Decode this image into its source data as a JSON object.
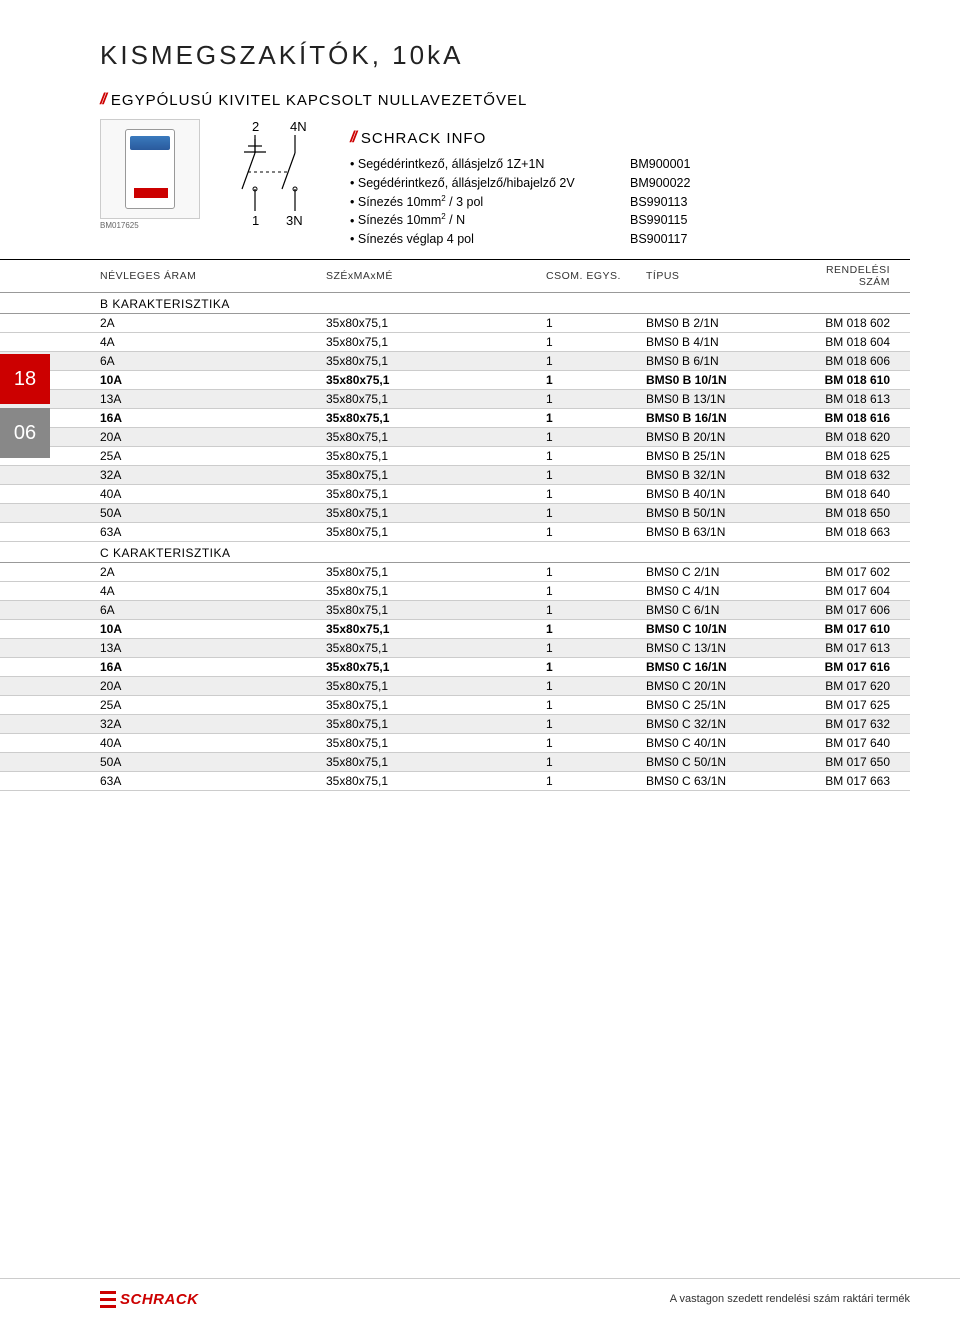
{
  "page_title": "KISMEGSZAKÍTÓK, 10kA",
  "main_section_title": "EGYPÓLUSÚ KIVITEL KAPCSOLT NULLAVEZETŐVEL",
  "info_title": "SCHRACK INFO",
  "photo_caption": "BM017625",
  "circuit_labels": {
    "tl": "2",
    "tr": "4N",
    "bl": "1",
    "br": "3N"
  },
  "info_items": [
    {
      "label": "Segédérintkező, állásjelző 1Z+1N",
      "code": "BM900001"
    },
    {
      "label": "Segédérintkező, állásjelző/hibajelző 2V",
      "code": "BM900022"
    },
    {
      "label": "Sínezés 10mm² / 3 pol",
      "code": "BS990113"
    },
    {
      "label": "Sínezés 10mm² / N",
      "code": "BS990115"
    },
    {
      "label": "Sínezés véglap 4 pol",
      "code": "BS900117"
    }
  ],
  "table_headers": {
    "name": "NÉVLEGES ÁRAM",
    "size": "SZÉxMAxMÉ",
    "pack": "CSOM. EGYS.",
    "type": "TÍPUS",
    "order": "RENDELÉSI SZÁM"
  },
  "sections": [
    {
      "title": "B KARAKTERISZTIKA",
      "rows": [
        {
          "a": "2A",
          "s": "35x80x75,1",
          "p": "1",
          "t": "BMS0 B 2/1N",
          "o": "BM 018 602",
          "shade": false,
          "bold": false
        },
        {
          "a": "4A",
          "s": "35x80x75,1",
          "p": "1",
          "t": "BMS0 B 4/1N",
          "o": "BM 018 604",
          "shade": false,
          "bold": false
        },
        {
          "a": "6A",
          "s": "35x80x75,1",
          "p": "1",
          "t": "BMS0 B 6/1N",
          "o": "BM 018 606",
          "shade": true,
          "bold": false
        },
        {
          "a": "10A",
          "s": "35x80x75,1",
          "p": "1",
          "t": "BMS0 B 10/1N",
          "o": "BM 018 610",
          "shade": false,
          "bold": true
        },
        {
          "a": "13A",
          "s": "35x80x75,1",
          "p": "1",
          "t": "BMS0 B 13/1N",
          "o": "BM 018 613",
          "shade": true,
          "bold": false
        },
        {
          "a": "16A",
          "s": "35x80x75,1",
          "p": "1",
          "t": "BMS0 B 16/1N",
          "o": "BM 018 616",
          "shade": false,
          "bold": true
        },
        {
          "a": "20A",
          "s": "35x80x75,1",
          "p": "1",
          "t": "BMS0 B 20/1N",
          "o": "BM 018 620",
          "shade": true,
          "bold": false
        },
        {
          "a": "25A",
          "s": "35x80x75,1",
          "p": "1",
          "t": "BMS0 B 25/1N",
          "o": "BM 018 625",
          "shade": false,
          "bold": false
        },
        {
          "a": "32A",
          "s": "35x80x75,1",
          "p": "1",
          "t": "BMS0 B 32/1N",
          "o": "BM 018 632",
          "shade": true,
          "bold": false
        },
        {
          "a": "40A",
          "s": "35x80x75,1",
          "p": "1",
          "t": "BMS0 B 40/1N",
          "o": "BM 018 640",
          "shade": false,
          "bold": false
        },
        {
          "a": "50A",
          "s": "35x80x75,1",
          "p": "1",
          "t": "BMS0 B 50/1N",
          "o": "BM 018 650",
          "shade": true,
          "bold": false
        },
        {
          "a": "63A",
          "s": "35x80x75,1",
          "p": "1",
          "t": "BMS0 B 63/1N",
          "o": "BM 018 663",
          "shade": false,
          "bold": false
        }
      ]
    },
    {
      "title": "C KARAKTERISZTIKA",
      "rows": [
        {
          "a": "2A",
          "s": "35x80x75,1",
          "p": "1",
          "t": "BMS0 C 2/1N",
          "o": "BM 017 602",
          "shade": false,
          "bold": false
        },
        {
          "a": "4A",
          "s": "35x80x75,1",
          "p": "1",
          "t": "BMS0 C 4/1N",
          "o": "BM 017 604",
          "shade": false,
          "bold": false
        },
        {
          "a": "6A",
          "s": "35x80x75,1",
          "p": "1",
          "t": "BMS0 C 6/1N",
          "o": "BM 017 606",
          "shade": true,
          "bold": false
        },
        {
          "a": "10A",
          "s": "35x80x75,1",
          "p": "1",
          "t": "BMS0 C 10/1N",
          "o": "BM 017 610",
          "shade": false,
          "bold": true
        },
        {
          "a": "13A",
          "s": "35x80x75,1",
          "p": "1",
          "t": "BMS0 C 13/1N",
          "o": "BM 017 613",
          "shade": true,
          "bold": false
        },
        {
          "a": "16A",
          "s": "35x80x75,1",
          "p": "1",
          "t": "BMS0 C 16/1N",
          "o": "BM 017 616",
          "shade": false,
          "bold": true
        },
        {
          "a": "20A",
          "s": "35x80x75,1",
          "p": "1",
          "t": "BMS0 C 20/1N",
          "o": "BM 017 620",
          "shade": true,
          "bold": false
        },
        {
          "a": "25A",
          "s": "35x80x75,1",
          "p": "1",
          "t": "BMS0 C 25/1N",
          "o": "BM 017 625",
          "shade": false,
          "bold": false
        },
        {
          "a": "32A",
          "s": "35x80x75,1",
          "p": "1",
          "t": "BMS0 C 32/1N",
          "o": "BM 017 632",
          "shade": true,
          "bold": false
        },
        {
          "a": "40A",
          "s": "35x80x75,1",
          "p": "1",
          "t": "BMS0 C 40/1N",
          "o": "BM 017 640",
          "shade": false,
          "bold": false
        },
        {
          "a": "50A",
          "s": "35x80x75,1",
          "p": "1",
          "t": "BMS0 C 50/1N",
          "o": "BM 017 650",
          "shade": true,
          "bold": false
        },
        {
          "a": "63A",
          "s": "35x80x75,1",
          "p": "1",
          "t": "BMS0 C 63/1N",
          "o": "BM 017 663",
          "shade": false,
          "bold": false
        }
      ]
    }
  ],
  "left_tabs": [
    {
      "text": "18",
      "style": "red"
    },
    {
      "text": "06",
      "style": "grey"
    }
  ],
  "footer_logo": "SCHRACK",
  "footer_note": "A vastagon szedett rendelési szám raktári termék",
  "colors": {
    "accent_red": "#cc0000",
    "grey": "#888888",
    "shade_bg": "#eeeeee",
    "border": "#cccccc"
  }
}
